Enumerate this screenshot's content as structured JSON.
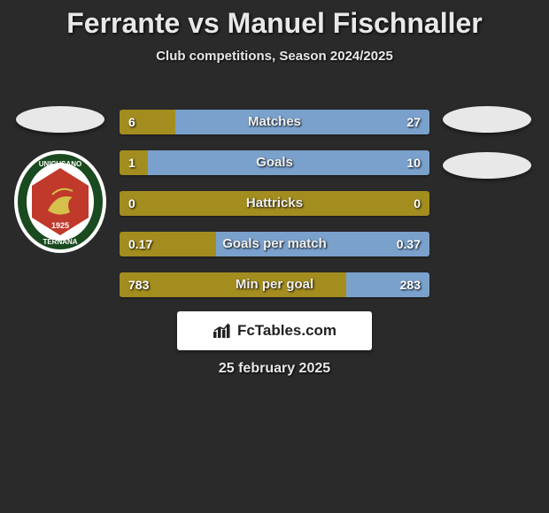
{
  "title": "Ferrante vs Manuel Fischnaller",
  "subtitle": "Club competitions, Season 2024/2025",
  "date": "25 february 2025",
  "attribution": "FcTables.com",
  "colors": {
    "left_bar": "#a38d1f",
    "right_bar": "#7aa1cc",
    "background": "#2a2a2a",
    "text": "#e8e8e8",
    "flag": "#e8e8e8",
    "attrib_bg": "#ffffff",
    "attrib_text": "#222222"
  },
  "fontsize": {
    "title": 32,
    "subtitle": 15,
    "bar_label": 15,
    "bar_value": 14,
    "date": 16
  },
  "left_crest": {
    "text_top": "UNICUSANO",
    "text_mid": "TERNANA",
    "year": "1925",
    "outer": "#ffffff",
    "ring": "#1a4a1f",
    "inner": "#c0392b",
    "accent": "#d4c04a"
  },
  "rows": [
    {
      "label": "Matches",
      "left_val": "6",
      "right_val": "27",
      "left_pct": 18,
      "right_pct": 82
    },
    {
      "label": "Goals",
      "left_val": "1",
      "right_val": "10",
      "left_pct": 9,
      "right_pct": 91
    },
    {
      "label": "Hattricks",
      "left_val": "0",
      "right_val": "0",
      "left_pct": 100,
      "right_pct": 0
    },
    {
      "label": "Goals per match",
      "left_val": "0.17",
      "right_val": "0.37",
      "left_pct": 31,
      "right_pct": 69
    },
    {
      "label": "Min per goal",
      "left_val": "783",
      "right_val": "283",
      "left_pct": 73,
      "right_pct": 27
    }
  ]
}
